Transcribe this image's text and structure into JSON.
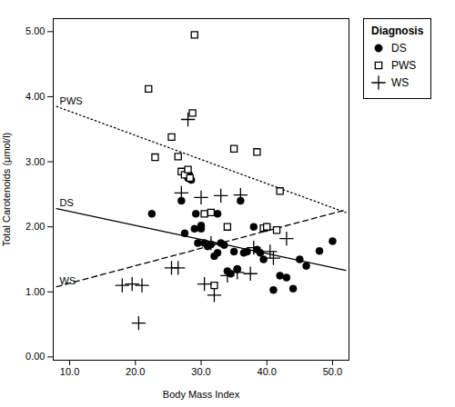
{
  "chart_data": {
    "type": "scatter",
    "xlabel": "Body Mass Index",
    "ylabel": "Total Carotenoids (μmol/l)",
    "xlim": [
      7.5,
      52.5
    ],
    "ylim": [
      -0.05,
      5.2
    ],
    "xticks": [
      {
        "value": 10,
        "label": "10.0"
      },
      {
        "value": 20,
        "label": "20.0"
      },
      {
        "value": 30,
        "label": "30.0"
      },
      {
        "value": 40,
        "label": "40.0"
      },
      {
        "value": 50,
        "label": "50.0"
      }
    ],
    "yticks": [
      {
        "value": 0,
        "label": "0.00"
      },
      {
        "value": 1,
        "label": "1.00"
      },
      {
        "value": 2,
        "label": "2.00"
      },
      {
        "value": 3,
        "label": "3.00"
      },
      {
        "value": 4,
        "label": "4.00"
      },
      {
        "value": 5,
        "label": "5.00"
      }
    ],
    "legend": "right",
    "legend_title": "Diagnosis",
    "series": [
      {
        "name": "DS",
        "marker": "circle",
        "color": "#000000",
        "x": [
          22.5,
          27.0,
          27.5,
          28.0,
          28.5,
          29.2,
          29.5,
          30.0,
          30.0,
          30.5,
          31.0,
          31.5,
          32.0,
          32.5,
          33.0,
          33.5,
          34.0,
          34.5,
          35.0,
          35.5,
          36.0,
          37.0,
          38.0,
          38.5,
          39.0,
          39.5,
          40.0,
          41.0,
          42.0,
          43.0,
          44.0,
          45.0,
          46.0,
          48.0,
          50.0,
          36.5,
          28.2,
          29.0,
          32.5,
          35.5
        ],
        "values": [
          2.2,
          2.4,
          1.9,
          2.75,
          2.72,
          2.2,
          1.75,
          1.97,
          2.02,
          1.75,
          1.7,
          1.73,
          1.55,
          2.2,
          1.75,
          1.72,
          1.32,
          1.28,
          1.62,
          1.35,
          2.4,
          1.62,
          2.0,
          1.65,
          1.6,
          1.5,
          2.0,
          1.03,
          1.25,
          1.22,
          1.05,
          1.5,
          1.4,
          1.63,
          1.78,
          1.6,
          2.8,
          1.97,
          1.6,
          1.35
        ]
      },
      {
        "name": "PWS",
        "marker": "square",
        "color": "#000000",
        "x": [
          22.0,
          23.0,
          25.5,
          26.5,
          27.0,
          27.5,
          28.0,
          28.3,
          28.7,
          29.0,
          30.5,
          31.5,
          32.0,
          34.0,
          35.0,
          38.5,
          39.5,
          40.0,
          41.5,
          42.0
        ],
        "values": [
          4.12,
          3.07,
          3.38,
          3.08,
          2.85,
          2.8,
          2.88,
          2.75,
          3.75,
          4.95,
          2.2,
          2.22,
          1.1,
          2.0,
          3.2,
          3.15,
          1.98,
          2.0,
          1.95,
          2.55
        ]
      },
      {
        "name": "WS",
        "marker": "plus",
        "color": "#000000",
        "x": [
          18.0,
          19.5,
          20.5,
          21.0,
          25.5,
          26.5,
          27.0,
          28.0,
          30.0,
          30.5,
          31.5,
          32.0,
          33.0,
          34.0,
          35.5,
          36.0,
          37.5,
          38.0,
          40.5,
          41.0,
          43.0
        ],
        "values": [
          1.1,
          1.12,
          0.52,
          1.1,
          1.37,
          1.37,
          2.52,
          3.65,
          2.45,
          1.12,
          1.75,
          0.95,
          2.48,
          1.25,
          1.3,
          2.49,
          1.28,
          1.68,
          1.62,
          1.52,
          1.82
        ]
      }
    ],
    "trend_lines": [
      {
        "x": [
          8,
          52
        ],
        "values": [
          2.28,
          1.33
        ],
        "line_style": "solid",
        "color": "#000000"
      },
      {
        "x": [
          8,
          52
        ],
        "values": [
          3.85,
          2.22
        ],
        "line_style": "dotted",
        "color": "#000000"
      },
      {
        "x": [
          8,
          52
        ],
        "values": [
          1.08,
          2.26
        ],
        "line_style": "dashed",
        "color": "#000000"
      }
    ],
    "annotations": [
      {
        "text": "PWS",
        "x": 8.2,
        "y": 3.93
      },
      {
        "text": "DS",
        "x": 8.2,
        "y": 2.36
      },
      {
        "text": "WS",
        "x": 8.2,
        "y": 1.16
      }
    ]
  }
}
